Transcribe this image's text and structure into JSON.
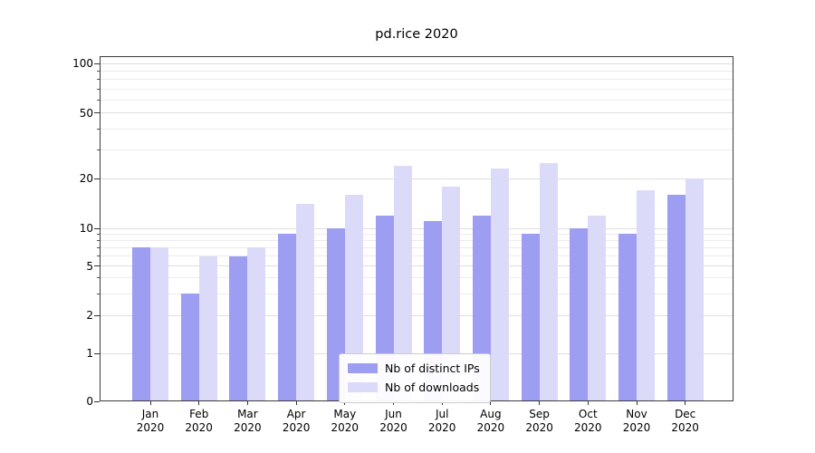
{
  "title": "pd.rice 2020",
  "chart_data": {
    "type": "bar",
    "title": "pd.rice 2020",
    "x_categories_line1": [
      "Jan",
      "Feb",
      "Mar",
      "Apr",
      "May",
      "Jun",
      "Jul",
      "Aug",
      "Sep",
      "Oct",
      "Nov",
      "Dec"
    ],
    "x_categories_line2": [
      "2020",
      "2020",
      "2020",
      "2020",
      "2020",
      "2020",
      "2020",
      "2020",
      "2020",
      "2020",
      "2020",
      "2020"
    ],
    "series": [
      {
        "name": "Nb of distinct IPs",
        "color": "#9d9df1",
        "values": [
          7,
          3,
          6,
          9,
          10,
          12,
          11,
          12,
          9,
          10,
          9,
          16
        ]
      },
      {
        "name": "Nb of downloads",
        "color": "#dbdbf9",
        "values": [
          7,
          6,
          7,
          14,
          16,
          24,
          18,
          23,
          25,
          12,
          17,
          20
        ]
      }
    ],
    "yscale": "symlog",
    "ylim": [
      0,
      110
    ],
    "yticks": [
      0,
      1,
      2,
      5,
      10,
      20,
      50,
      100
    ],
    "ytick_labels": [
      "0",
      "1",
      "2",
      "5",
      "10",
      "20",
      "50",
      "100"
    ],
    "yticks_minor": [
      3,
      4,
      6,
      7,
      8,
      9,
      30,
      40,
      60,
      70,
      80,
      90
    ],
    "grid": true,
    "legend": {
      "position": "lower center",
      "entries": [
        "Nb of distinct IPs",
        "Nb of downloads"
      ]
    }
  }
}
